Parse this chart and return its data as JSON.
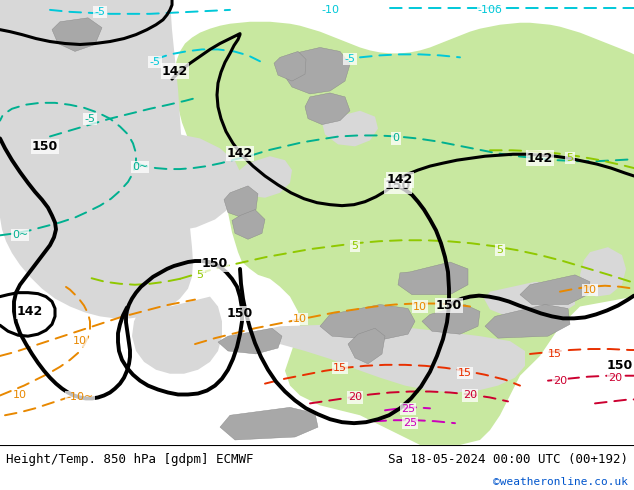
{
  "title_left": "Height/Temp. 850 hPa [gdpm] ECMWF",
  "title_right": "Sa 18-05-2024 00:00 UTC (00+192)",
  "title_right2": "©weatheronline.co.uk",
  "fig_width": 6.34,
  "fig_height": 4.9,
  "dpi": 100,
  "colors": {
    "land_green": "#c8e8a0",
    "ocean_gray": "#d8d8d8",
    "mountain_gray": "#a8a8a8",
    "cyan_temp": "#00c8d8",
    "teal_temp": "#00b090",
    "ygreen_temp": "#90c800",
    "orange_temp": "#e88800",
    "red_temp": "#e83000",
    "crimson_temp": "#cc0030",
    "magenta_temp": "#cc00bb",
    "black_geo": "#000000"
  },
  "bottom_text_left": "Height/Temp. 850 hPa [gdpm] ECMWF",
  "bottom_text_right": "Sa 18-05-2024 00:00 UTC (00+192)",
  "bottom_text_web": "©weatheronline.co.uk"
}
